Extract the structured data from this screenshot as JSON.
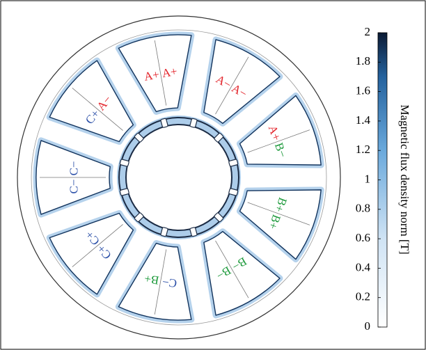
{
  "colorbar": {
    "label": "Magnetic flux density norm [T]",
    "lim": [
      0,
      2
    ],
    "ticks": [
      0,
      0.2,
      0.4,
      0.6,
      0.8,
      1,
      1.2,
      1.4,
      1.6,
      1.8,
      2
    ]
  },
  "phase_colors": {
    "A": "#e3262d",
    "B": "#1e9a3c",
    "C": "#2c50a8"
  },
  "coil_labels": [
    [
      "A+",
      "A+"
    ],
    [
      "A−",
      "A−"
    ],
    [
      "A+",
      "B−"
    ],
    [
      "B+",
      "B+"
    ],
    [
      "B−",
      "B−"
    ],
    [
      "C−",
      "B+"
    ],
    [
      "C+",
      "C+"
    ],
    [
      "C−",
      "C−"
    ],
    [
      "C+",
      "A−"
    ]
  ]
}
